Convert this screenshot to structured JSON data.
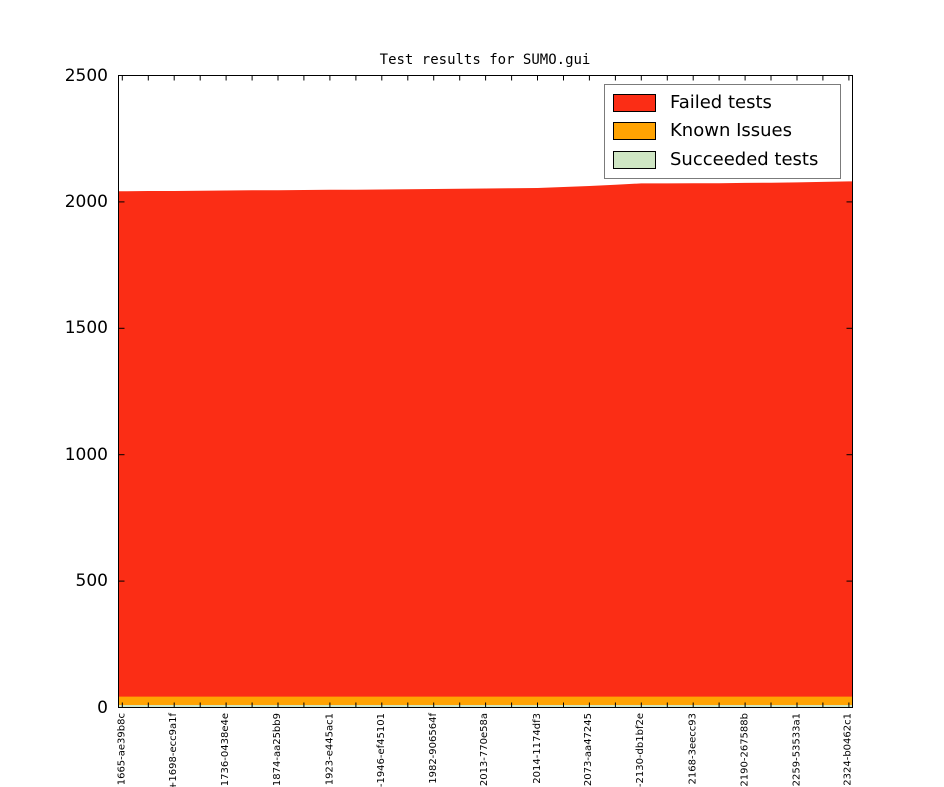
{
  "title": "Test results for SUMO.gui",
  "legend": {
    "position": "top-right",
    "items": [
      {
        "label": "Failed tests",
        "color": "#fb2d15"
      },
      {
        "label": "Known Issues",
        "color": "#ffa302"
      },
      {
        "label": "Succeeded tests",
        "color": "#cfe6c4"
      }
    ]
  },
  "chart_data": {
    "type": "area",
    "stacked": true,
    "title": "Test results for SUMO.gui",
    "xlabel": "",
    "ylabel": "",
    "ylim": [
      0,
      2500
    ],
    "yticks": [
      0,
      500,
      1000,
      1500,
      2000,
      2500
    ],
    "grid": false,
    "legend_position": "top-right",
    "label_every": 2,
    "categories": [
      "1665-ae39b8c",
      "+1698-ecc9a1f",
      "1736-0438e4e",
      "1874-aa25bb9",
      "1923-e445ac1",
      "-1946-ef45101",
      "1982-906564f",
      "2013-770e58a",
      "2014-1174df3",
      "2073-aa47245",
      "-2130-db1bf2e",
      "2168-3eecc93",
      "2190-267588b",
      "2259-53533a1",
      "2324-b0462c1"
    ],
    "series": [
      {
        "name": "Succeeded tests",
        "color": "#cfe6c4",
        "values": [
          10,
          10,
          10,
          10,
          10,
          10,
          10,
          10,
          10,
          10,
          10,
          10,
          10,
          10,
          10,
          10,
          10,
          10,
          10,
          10,
          10,
          10,
          10,
          10,
          10,
          10,
          10,
          10,
          10
        ]
      },
      {
        "name": "Known Issues",
        "color": "#ffa302",
        "values": [
          33,
          33,
          33,
          33,
          33,
          33,
          33,
          33,
          33,
          33,
          33,
          33,
          33,
          33,
          33,
          33,
          33,
          33,
          33,
          33,
          33,
          33,
          33,
          33,
          33,
          33,
          33,
          33,
          33
        ]
      },
      {
        "name": "Failed tests",
        "color": "#fb2d15",
        "values": [
          1999,
          2000,
          2000,
          2001,
          2002,
          2003,
          2003,
          2004,
          2005,
          2005,
          2006,
          2007,
          2008,
          2009,
          2010,
          2011,
          2012,
          2016,
          2020,
          2025,
          2030,
          2030,
          2031,
          2031,
          2032,
          2033,
          2034,
          2036,
          2038
        ]
      }
    ]
  }
}
